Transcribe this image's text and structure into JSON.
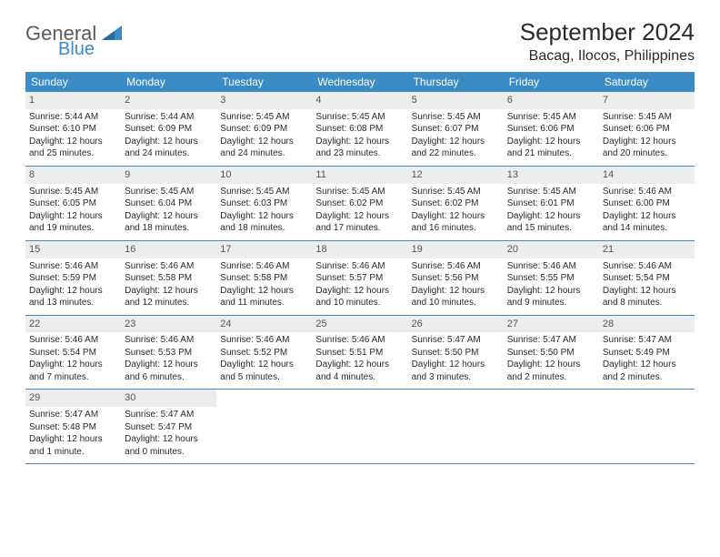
{
  "brand": {
    "word1": "General",
    "word2": "Blue"
  },
  "title": "September 2024",
  "location": "Bacag, Ilocos, Philippines",
  "colors": {
    "header_bg": "#3b8bc4",
    "header_text": "#ffffff",
    "daynum_bg": "#eceded",
    "border": "#3b8bc4",
    "text": "#2a2a2a",
    "logo_gray": "#5a5a5a",
    "logo_blue": "#3b8bc4",
    "page_bg": "#ffffff"
  },
  "typography": {
    "title_fontsize": 26,
    "location_fontsize": 16,
    "dayheader_fontsize": 12,
    "body_fontsize": 10,
    "font_family": "Arial"
  },
  "day_names": [
    "Sunday",
    "Monday",
    "Tuesday",
    "Wednesday",
    "Thursday",
    "Friday",
    "Saturday"
  ],
  "weeks": [
    [
      {
        "n": "1",
        "sunrise": "Sunrise: 5:44 AM",
        "sunset": "Sunset: 6:10 PM",
        "daylight": "Daylight: 12 hours and 25 minutes."
      },
      {
        "n": "2",
        "sunrise": "Sunrise: 5:44 AM",
        "sunset": "Sunset: 6:09 PM",
        "daylight": "Daylight: 12 hours and 24 minutes."
      },
      {
        "n": "3",
        "sunrise": "Sunrise: 5:45 AM",
        "sunset": "Sunset: 6:09 PM",
        "daylight": "Daylight: 12 hours and 24 minutes."
      },
      {
        "n": "4",
        "sunrise": "Sunrise: 5:45 AM",
        "sunset": "Sunset: 6:08 PM",
        "daylight": "Daylight: 12 hours and 23 minutes."
      },
      {
        "n": "5",
        "sunrise": "Sunrise: 5:45 AM",
        "sunset": "Sunset: 6:07 PM",
        "daylight": "Daylight: 12 hours and 22 minutes."
      },
      {
        "n": "6",
        "sunrise": "Sunrise: 5:45 AM",
        "sunset": "Sunset: 6:06 PM",
        "daylight": "Daylight: 12 hours and 21 minutes."
      },
      {
        "n": "7",
        "sunrise": "Sunrise: 5:45 AM",
        "sunset": "Sunset: 6:06 PM",
        "daylight": "Daylight: 12 hours and 20 minutes."
      }
    ],
    [
      {
        "n": "8",
        "sunrise": "Sunrise: 5:45 AM",
        "sunset": "Sunset: 6:05 PM",
        "daylight": "Daylight: 12 hours and 19 minutes."
      },
      {
        "n": "9",
        "sunrise": "Sunrise: 5:45 AM",
        "sunset": "Sunset: 6:04 PM",
        "daylight": "Daylight: 12 hours and 18 minutes."
      },
      {
        "n": "10",
        "sunrise": "Sunrise: 5:45 AM",
        "sunset": "Sunset: 6:03 PM",
        "daylight": "Daylight: 12 hours and 18 minutes."
      },
      {
        "n": "11",
        "sunrise": "Sunrise: 5:45 AM",
        "sunset": "Sunset: 6:02 PM",
        "daylight": "Daylight: 12 hours and 17 minutes."
      },
      {
        "n": "12",
        "sunrise": "Sunrise: 5:45 AM",
        "sunset": "Sunset: 6:02 PM",
        "daylight": "Daylight: 12 hours and 16 minutes."
      },
      {
        "n": "13",
        "sunrise": "Sunrise: 5:45 AM",
        "sunset": "Sunset: 6:01 PM",
        "daylight": "Daylight: 12 hours and 15 minutes."
      },
      {
        "n": "14",
        "sunrise": "Sunrise: 5:46 AM",
        "sunset": "Sunset: 6:00 PM",
        "daylight": "Daylight: 12 hours and 14 minutes."
      }
    ],
    [
      {
        "n": "15",
        "sunrise": "Sunrise: 5:46 AM",
        "sunset": "Sunset: 5:59 PM",
        "daylight": "Daylight: 12 hours and 13 minutes."
      },
      {
        "n": "16",
        "sunrise": "Sunrise: 5:46 AM",
        "sunset": "Sunset: 5:58 PM",
        "daylight": "Daylight: 12 hours and 12 minutes."
      },
      {
        "n": "17",
        "sunrise": "Sunrise: 5:46 AM",
        "sunset": "Sunset: 5:58 PM",
        "daylight": "Daylight: 12 hours and 11 minutes."
      },
      {
        "n": "18",
        "sunrise": "Sunrise: 5:46 AM",
        "sunset": "Sunset: 5:57 PM",
        "daylight": "Daylight: 12 hours and 10 minutes."
      },
      {
        "n": "19",
        "sunrise": "Sunrise: 5:46 AM",
        "sunset": "Sunset: 5:56 PM",
        "daylight": "Daylight: 12 hours and 10 minutes."
      },
      {
        "n": "20",
        "sunrise": "Sunrise: 5:46 AM",
        "sunset": "Sunset: 5:55 PM",
        "daylight": "Daylight: 12 hours and 9 minutes."
      },
      {
        "n": "21",
        "sunrise": "Sunrise: 5:46 AM",
        "sunset": "Sunset: 5:54 PM",
        "daylight": "Daylight: 12 hours and 8 minutes."
      }
    ],
    [
      {
        "n": "22",
        "sunrise": "Sunrise: 5:46 AM",
        "sunset": "Sunset: 5:54 PM",
        "daylight": "Daylight: 12 hours and 7 minutes."
      },
      {
        "n": "23",
        "sunrise": "Sunrise: 5:46 AM",
        "sunset": "Sunset: 5:53 PM",
        "daylight": "Daylight: 12 hours and 6 minutes."
      },
      {
        "n": "24",
        "sunrise": "Sunrise: 5:46 AM",
        "sunset": "Sunset: 5:52 PM",
        "daylight": "Daylight: 12 hours and 5 minutes."
      },
      {
        "n": "25",
        "sunrise": "Sunrise: 5:46 AM",
        "sunset": "Sunset: 5:51 PM",
        "daylight": "Daylight: 12 hours and 4 minutes."
      },
      {
        "n": "26",
        "sunrise": "Sunrise: 5:47 AM",
        "sunset": "Sunset: 5:50 PM",
        "daylight": "Daylight: 12 hours and 3 minutes."
      },
      {
        "n": "27",
        "sunrise": "Sunrise: 5:47 AM",
        "sunset": "Sunset: 5:50 PM",
        "daylight": "Daylight: 12 hours and 2 minutes."
      },
      {
        "n": "28",
        "sunrise": "Sunrise: 5:47 AM",
        "sunset": "Sunset: 5:49 PM",
        "daylight": "Daylight: 12 hours and 2 minutes."
      }
    ],
    [
      {
        "n": "29",
        "sunrise": "Sunrise: 5:47 AM",
        "sunset": "Sunset: 5:48 PM",
        "daylight": "Daylight: 12 hours and 1 minute."
      },
      {
        "n": "30",
        "sunrise": "Sunrise: 5:47 AM",
        "sunset": "Sunset: 5:47 PM",
        "daylight": "Daylight: 12 hours and 0 minutes."
      },
      null,
      null,
      null,
      null,
      null
    ]
  ]
}
